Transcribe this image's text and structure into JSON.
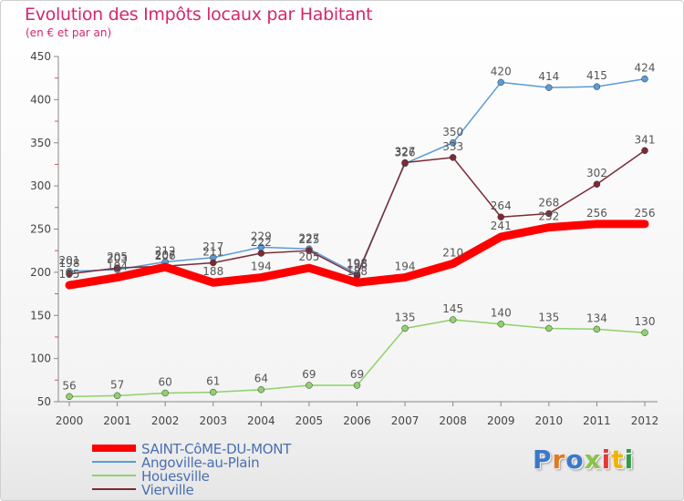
{
  "title": "Evolution des Impôts locaux par Habitant",
  "subtitle": "(en € et par an)",
  "logo": {
    "text": "Proxiti",
    "colors": [
      "#3a78c9",
      "#e07a20",
      "#3a78c9",
      "#8bc34a",
      "#e53935",
      "#f0b400",
      "#2e9e46"
    ]
  },
  "chart_data": {
    "type": "line",
    "x": [
      "2000",
      "2001",
      "2002",
      "2003",
      "2004",
      "2005",
      "2006",
      "2007",
      "2008",
      "2009",
      "2010",
      "2011",
      "2012"
    ],
    "ylim": [
      50,
      450
    ],
    "yticks": [
      "50",
      "100",
      "150",
      "200",
      "250",
      "300",
      "350",
      "400",
      "450"
    ],
    "grid": false,
    "legend_position": "bottom-left",
    "series": [
      {
        "name": "Angoville-au-Plain",
        "color": "#5b9bd5",
        "values": [
          201,
          203,
          212,
          217,
          229,
          227,
          198,
          326,
          350,
          420,
          414,
          415,
          424
        ]
      },
      {
        "name": "Vierville",
        "color": "#7b2a36",
        "values": [
          198,
          205,
          207,
          211,
          222,
          225,
          196,
          327,
          333,
          264,
          268,
          302,
          341
        ]
      },
      {
        "name": "Houesville",
        "color": "#8fd16a",
        "values": [
          56,
          57,
          60,
          61,
          64,
          69,
          69,
          135,
          145,
          140,
          135,
          134,
          130
        ]
      },
      {
        "name": "SAINT-CôME-DU-MONT",
        "color": "#ff0000",
        "values": [
          185,
          194,
          206,
          188,
          194,
          205,
          188,
          194,
          210,
          241,
          252,
          256,
          256
        ]
      }
    ],
    "legend_order": [
      3,
      0,
      2,
      1
    ]
  }
}
